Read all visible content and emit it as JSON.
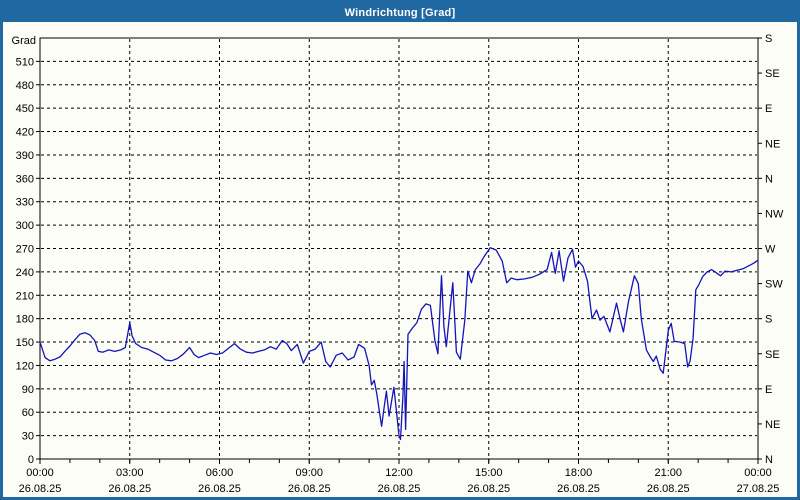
{
  "window": {
    "title": "Windrichtung [Grad]"
  },
  "colors": {
    "frame": "#2068a2",
    "titlebar": "#2068a2",
    "title_text": "#ffffff",
    "background": "#fcfdf7",
    "plot_border": "#000000",
    "gridline": "#000000",
    "tick_text": "#000000",
    "series_line": "#1414bb"
  },
  "chart_data": {
    "type": "line",
    "title": "Windrichtung [Grad]",
    "grid": {
      "style": "dashed",
      "x_every_hours": 3,
      "y_every_deg": 30
    },
    "y_axis_left": {
      "label": "Grad",
      "min": 0,
      "max": 540,
      "tick_step": 30
    },
    "y_axis_right": {
      "tick_step_deg": 45,
      "labels_bottom_to_top": [
        "N",
        "NE",
        "E",
        "SE",
        "S",
        "SW",
        "W",
        "NW",
        "N",
        "NE",
        "E",
        "SE",
        "S"
      ]
    },
    "x_axis": {
      "range_hours": [
        0,
        24
      ],
      "minor_tick_hours": 1,
      "major_ticks": [
        {
          "hour": 0,
          "time": "00:00",
          "date": "26.08.25"
        },
        {
          "hour": 3,
          "time": "03:00",
          "date": "26.08.25"
        },
        {
          "hour": 6,
          "time": "06:00",
          "date": "26.08.25"
        },
        {
          "hour": 9,
          "time": "09:00",
          "date": "26.08.25"
        },
        {
          "hour": 12,
          "time": "12:00",
          "date": "26.08.25"
        },
        {
          "hour": 15,
          "time": "15:00",
          "date": "26.08.25"
        },
        {
          "hour": 18,
          "time": "18:00",
          "date": "26.08.25"
        },
        {
          "hour": 21,
          "time": "21:00",
          "date": "26.08.25"
        },
        {
          "hour": 24,
          "time": "00:00",
          "date": "27.08.25"
        }
      ]
    },
    "series": [
      {
        "name": "Windrichtung",
        "unit": "Grad",
        "color": "#1414bb",
        "points": [
          [
            0.0,
            150
          ],
          [
            0.17,
            130
          ],
          [
            0.33,
            126
          ],
          [
            0.5,
            128
          ],
          [
            0.67,
            131
          ],
          [
            0.83,
            138
          ],
          [
            1.0,
            145
          ],
          [
            1.17,
            153
          ],
          [
            1.33,
            160
          ],
          [
            1.5,
            162
          ],
          [
            1.67,
            159
          ],
          [
            1.83,
            152
          ],
          [
            1.95,
            138
          ],
          [
            2.1,
            137
          ],
          [
            2.3,
            140
          ],
          [
            2.5,
            138
          ],
          [
            2.7,
            140
          ],
          [
            2.85,
            143
          ],
          [
            3.0,
            175
          ],
          [
            3.08,
            158
          ],
          [
            3.2,
            148
          ],
          [
            3.4,
            143
          ],
          [
            3.6,
            141
          ],
          [
            3.8,
            137
          ],
          [
            4.0,
            133
          ],
          [
            4.2,
            127
          ],
          [
            4.4,
            126
          ],
          [
            4.6,
            129
          ],
          [
            4.8,
            135
          ],
          [
            5.0,
            143
          ],
          [
            5.15,
            134
          ],
          [
            5.3,
            130
          ],
          [
            5.5,
            133
          ],
          [
            5.7,
            136
          ],
          [
            5.9,
            134
          ],
          [
            6.1,
            136
          ],
          [
            6.3,
            142
          ],
          [
            6.5,
            148
          ],
          [
            6.7,
            141
          ],
          [
            6.9,
            137
          ],
          [
            7.1,
            136
          ],
          [
            7.3,
            138
          ],
          [
            7.5,
            140
          ],
          [
            7.7,
            144
          ],
          [
            7.9,
            141
          ],
          [
            8.1,
            152
          ],
          [
            8.25,
            148
          ],
          [
            8.4,
            139
          ],
          [
            8.6,
            147
          ],
          [
            8.8,
            123
          ],
          [
            9.0,
            138
          ],
          [
            9.2,
            141
          ],
          [
            9.4,
            150
          ],
          [
            9.55,
            125
          ],
          [
            9.7,
            118
          ],
          [
            9.9,
            133
          ],
          [
            10.1,
            136
          ],
          [
            10.3,
            127
          ],
          [
            10.5,
            131
          ],
          [
            10.65,
            147
          ],
          [
            10.85,
            142
          ],
          [
            11.0,
            120
          ],
          [
            11.08,
            95
          ],
          [
            11.17,
            101
          ],
          [
            11.25,
            85
          ],
          [
            11.42,
            42
          ],
          [
            11.5,
            65
          ],
          [
            11.58,
            87
          ],
          [
            11.67,
            55
          ],
          [
            11.83,
            92
          ],
          [
            12.0,
            30
          ],
          [
            12.05,
            25
          ],
          [
            12.13,
            80
          ],
          [
            12.17,
            125
          ],
          [
            12.22,
            38
          ],
          [
            12.3,
            160
          ],
          [
            12.45,
            168
          ],
          [
            12.6,
            175
          ],
          [
            12.75,
            192
          ],
          [
            12.9,
            199
          ],
          [
            13.05,
            197
          ],
          [
            13.2,
            152
          ],
          [
            13.3,
            135
          ],
          [
            13.42,
            235
          ],
          [
            13.5,
            170
          ],
          [
            13.58,
            144
          ],
          [
            13.7,
            190
          ],
          [
            13.8,
            226
          ],
          [
            13.92,
            137
          ],
          [
            14.05,
            128
          ],
          [
            14.2,
            178
          ],
          [
            14.3,
            241
          ],
          [
            14.42,
            226
          ],
          [
            14.55,
            243
          ],
          [
            14.7,
            250
          ],
          [
            14.85,
            260
          ],
          [
            15.05,
            271
          ],
          [
            15.25,
            268
          ],
          [
            15.45,
            254
          ],
          [
            15.6,
            226
          ],
          [
            15.75,
            232
          ],
          [
            15.95,
            230
          ],
          [
            16.2,
            231
          ],
          [
            16.45,
            233
          ],
          [
            16.7,
            237
          ],
          [
            16.95,
            243
          ],
          [
            17.1,
            265
          ],
          [
            17.22,
            238
          ],
          [
            17.35,
            267
          ],
          [
            17.5,
            228
          ],
          [
            17.65,
            258
          ],
          [
            17.8,
            269
          ],
          [
            17.9,
            246
          ],
          [
            18.0,
            254
          ],
          [
            18.15,
            247
          ],
          [
            18.3,
            228
          ],
          [
            18.45,
            180
          ],
          [
            18.6,
            191
          ],
          [
            18.72,
            178
          ],
          [
            18.85,
            183
          ],
          [
            19.05,
            163
          ],
          [
            19.27,
            200
          ],
          [
            19.4,
            178
          ],
          [
            19.5,
            163
          ],
          [
            19.67,
            202
          ],
          [
            19.87,
            235
          ],
          [
            20.0,
            225
          ],
          [
            20.1,
            180
          ],
          [
            20.27,
            140
          ],
          [
            20.4,
            131
          ],
          [
            20.5,
            125
          ],
          [
            20.6,
            132
          ],
          [
            20.73,
            115
          ],
          [
            20.83,
            110
          ],
          [
            21.0,
            165
          ],
          [
            21.1,
            174
          ],
          [
            21.2,
            151
          ],
          [
            21.4,
            150
          ],
          [
            21.55,
            148
          ],
          [
            21.65,
            118
          ],
          [
            21.73,
            126
          ],
          [
            21.83,
            155
          ],
          [
            21.92,
            217
          ],
          [
            22.0,
            222
          ],
          [
            22.15,
            234
          ],
          [
            22.3,
            240
          ],
          [
            22.45,
            243
          ],
          [
            22.6,
            239
          ],
          [
            22.75,
            235
          ],
          [
            22.9,
            241
          ],
          [
            23.1,
            240
          ],
          [
            23.3,
            242
          ],
          [
            23.5,
            244
          ],
          [
            23.7,
            248
          ],
          [
            23.85,
            251
          ],
          [
            24.0,
            255
          ]
        ]
      }
    ]
  }
}
